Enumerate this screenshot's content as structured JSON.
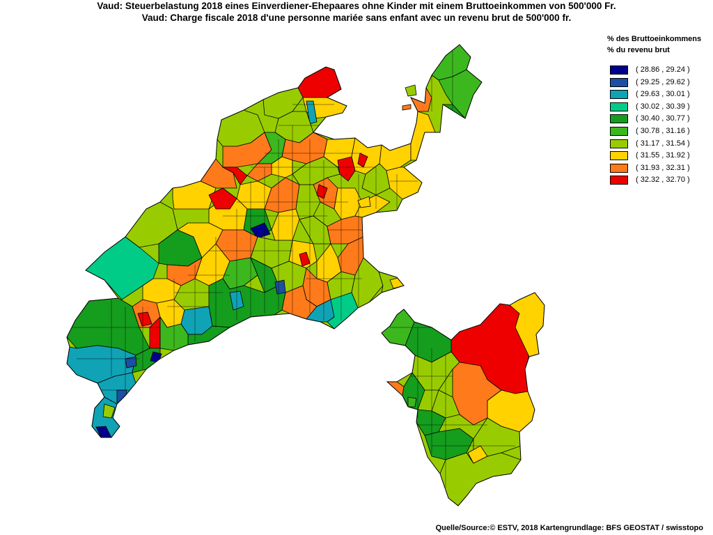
{
  "title_de": "Vaud: Steuerbelastung 2018 eines Einverdiener-Ehepaares ohne Kinder mit einem Bruttoeinkommen von 500'000 Fr.",
  "title_fr": "Vaud: Charge fiscale 2018 d'une personne mariée sans enfant avec un revenu brut de 500'000 fr.",
  "legend": {
    "title_de": "% des Bruttoeinkommens",
    "title_fr": "% du revenu brut",
    "classes": [
      {
        "label": "( 28.86 , 29.24 )",
        "color": "#00008b"
      },
      {
        "label": "( 29.25 , 29.62 )",
        "color": "#1c4fa3"
      },
      {
        "label": "( 29.63 , 30.01 )",
        "color": "#0fa3b5"
      },
      {
        "label": "( 30.02 , 30.39 )",
        "color": "#00cc88"
      },
      {
        "label": "( 30.40 , 30.77 )",
        "color": "#159d1e"
      },
      {
        "label": "( 30.78 , 31.16 )",
        "color": "#3cb81e"
      },
      {
        "label": "( 31.17 , 31.54 )",
        "color": "#99cc00"
      },
      {
        "label": "( 31.55 , 31.92 )",
        "color": "#ffd200"
      },
      {
        "label": "( 31.93 , 32.31 )",
        "color": "#ff7a1a"
      },
      {
        "label": "( 32.32 , 32.70 )",
        "color": "#ee0000"
      }
    ]
  },
  "source": "Quelle/Source:© ESTV, 2018 Kartengrundlage: BFS GEOSTAT / swisstopo"
}
